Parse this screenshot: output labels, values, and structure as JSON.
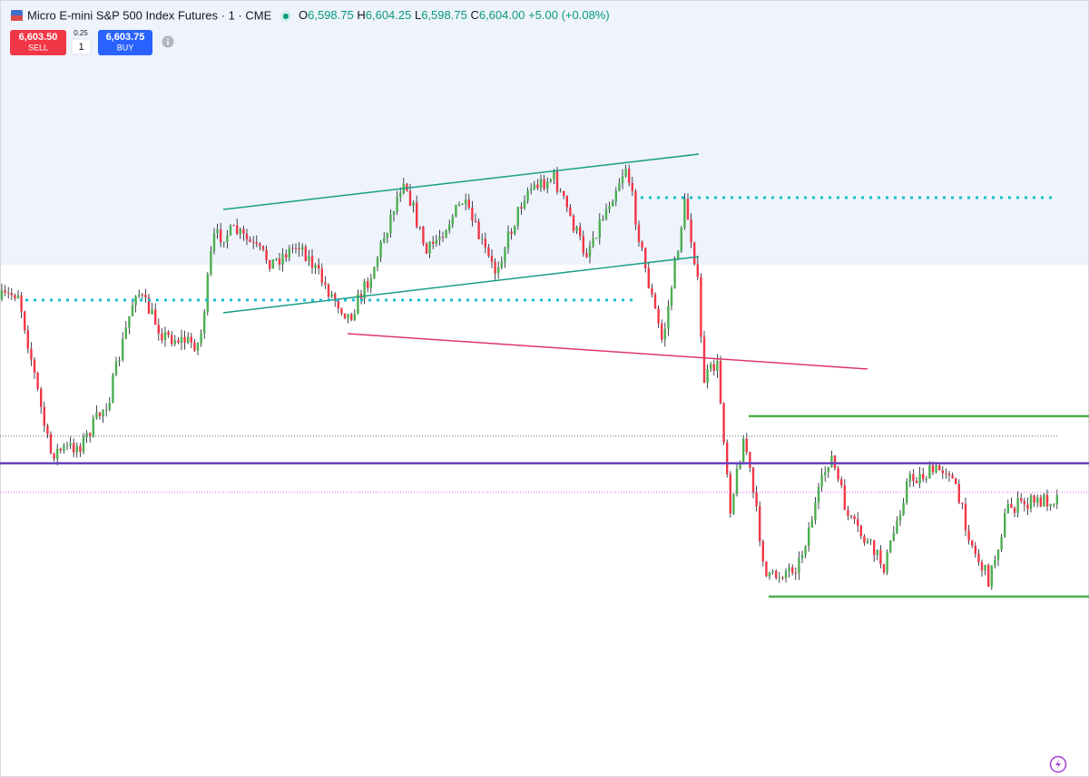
{
  "header": {
    "title": "Micro E-mini S&P 500 Index Futures · 1 · CME",
    "ohlc": [
      {
        "label": "O",
        "value": "6,598.75"
      },
      {
        "label": "H",
        "value": "6,604.25"
      },
      {
        "label": "L",
        "value": "6,598.75"
      },
      {
        "label": "C",
        "value": "6,604.00"
      }
    ],
    "change": "+5.00 (+0.08%)"
  },
  "trade": {
    "sell": {
      "price": "6,603.50",
      "label": "SELL"
    },
    "spread": "0.25",
    "quantity": "1",
    "buy": {
      "price": "6,603.75",
      "label": "BUY"
    }
  }
}
